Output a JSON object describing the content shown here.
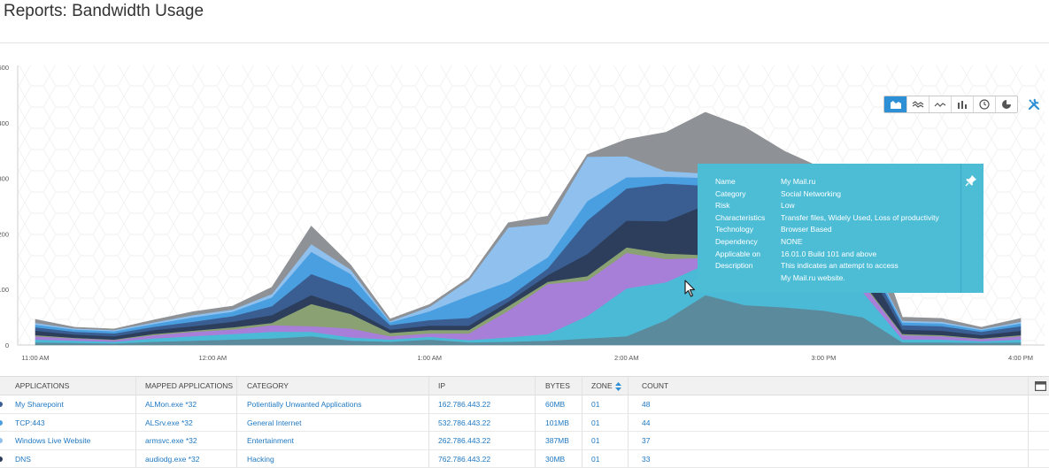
{
  "page": {
    "title": "Reports: Bandwidth Usage"
  },
  "toolbar": {
    "buttons": [
      {
        "icon": "area-chart-icon",
        "active": true
      },
      {
        "icon": "stacked-line-icon",
        "active": false
      },
      {
        "icon": "line-chart-icon",
        "active": false
      },
      {
        "icon": "bar-chart-icon",
        "active": false
      },
      {
        "icon": "clock-icon",
        "active": false
      },
      {
        "icon": "pie-chart-icon",
        "active": false
      }
    ],
    "tools_icon": "wrench-screwdriver-icon",
    "active_color": "#2d8fd5"
  },
  "chart_data": {
    "type": "area",
    "stacked": true,
    "y_tick_labels": [
      "500",
      "400",
      "300",
      "200",
      "100",
      "0"
    ],
    "ylim": [
      0,
      500
    ],
    "x_tick_labels": [
      "11:00 AM",
      "12:00 AM",
      "1:00 AM",
      "2:00 AM",
      "3:00 PM",
      "4:00 PM"
    ],
    "x": [
      0,
      1,
      2,
      3,
      4,
      5,
      6,
      7,
      8,
      9,
      10,
      11,
      12,
      13,
      14,
      15,
      16,
      17,
      18,
      19,
      20,
      21,
      22,
      23,
      24,
      25
    ],
    "x_tick_positions": [
      0,
      4.5,
      10,
      15,
      20,
      25
    ],
    "grid": false,
    "series": [
      {
        "color": "#5b8a9c",
        "values": [
          5,
          4,
          3,
          6,
          8,
          10,
          12,
          16,
          8,
          6,
          10,
          5,
          6,
          8,
          12,
          16,
          45,
          90,
          72,
          68,
          62,
          50,
          5,
          5,
          4,
          5
        ]
      },
      {
        "color": "#4bbad6",
        "values": [
          5,
          4,
          3,
          6,
          8,
          10,
          12,
          8,
          6,
          4,
          5,
          4,
          8,
          12,
          40,
          86,
          68,
          55,
          58,
          56,
          55,
          45,
          5,
          5,
          3,
          5
        ]
      },
      {
        "color": "#a77fd9",
        "values": [
          6,
          4,
          3,
          6,
          8,
          8,
          12,
          10,
          16,
          6,
          6,
          12,
          48,
          90,
          64,
          64,
          42,
          12,
          10,
          8,
          10,
          15,
          8,
          6,
          4,
          6
        ]
      },
      {
        "color": "#8aa173",
        "values": [
          2,
          1,
          1,
          2,
          2,
          4,
          4,
          40,
          26,
          6,
          6,
          6,
          8,
          4,
          8,
          10,
          10,
          5,
          6,
          5,
          4,
          3,
          2,
          2,
          1,
          2
        ]
      },
      {
        "color": "#2c3e5c",
        "values": [
          8,
          6,
          6,
          7,
          8,
          10,
          14,
          16,
          10,
          6,
          8,
          8,
          8,
          12,
          40,
          48,
          58,
          90,
          80,
          60,
          50,
          40,
          8,
          8,
          6,
          8
        ]
      },
      {
        "color": "#3a5e91",
        "values": [
          6,
          5,
          5,
          6,
          8,
          10,
          16,
          38,
          36,
          8,
          10,
          14,
          8,
          12,
          60,
          58,
          68,
          35,
          38,
          30,
          25,
          16,
          8,
          8,
          6,
          8
        ]
      },
      {
        "color": "#4a9fe0",
        "values": [
          5,
          4,
          4,
          5,
          8,
          8,
          16,
          40,
          26,
          5,
          16,
          40,
          28,
          20,
          35,
          20,
          12,
          14,
          12,
          10,
          10,
          8,
          5,
          5,
          3,
          5
        ]
      },
      {
        "color": "#8fc0ee",
        "values": [
          3,
          2,
          2,
          3,
          4,
          4,
          6,
          14,
          8,
          2,
          8,
          28,
          98,
          60,
          80,
          38,
          10,
          8,
          6,
          6,
          5,
          4,
          3,
          3,
          2,
          3
        ]
      },
      {
        "color": "#8e9195",
        "values": [
          6,
          2,
          2,
          4,
          6,
          6,
          12,
          32,
          8,
          4,
          4,
          4,
          8,
          14,
          4,
          30,
          70,
          110,
          110,
          106,
          96,
          70,
          6,
          6,
          3,
          6
        ]
      }
    ]
  },
  "tooltip": {
    "rows": [
      {
        "label": "Name",
        "value": "My Mail.ru"
      },
      {
        "label": "Category",
        "value": "Social Networking"
      },
      {
        "label": "Risk",
        "value": "Low"
      },
      {
        "label": "Characteristics",
        "value": "Transfer files, Widely Used, Loss of productivity"
      },
      {
        "label": "Technology",
        "value": "Browser Based"
      },
      {
        "label": "Dependency",
        "value": "NONE"
      },
      {
        "label": "Applicable on",
        "value": "16.01.0 Build 101 and above"
      },
      {
        "label": "Description",
        "value": "This indicates an attempt to access"
      },
      {
        "label": "",
        "value": "My Mail.ru website."
      }
    ],
    "pin_icon": "pin-icon",
    "background": "#4dbdd6"
  },
  "table": {
    "columns": [
      "APPLICATIONS",
      "MAPPED APPLICATIONS",
      "CATEGORY",
      "IP",
      "BYTES",
      "ZONE",
      "COUNT"
    ],
    "sort_icon": "sort-icon",
    "columns_toggle_icon": "column-toggle-icon",
    "rows": [
      {
        "dot_color": "#3a5e91",
        "cells": [
          "My Sharepoint",
          "ALMon.exe *32",
          "Potientially Unwanted Applications",
          "162.786.443.22",
          "60MB",
          "01",
          "48"
        ]
      },
      {
        "dot_color": "#4a9fe0",
        "cells": [
          "TCP:443",
          "ALSrv.exe *32",
          "General Internet",
          "532.786.443.22",
          "101MB",
          "01",
          "44"
        ]
      },
      {
        "dot_color": "#8fc0ee",
        "cells": [
          "Windows Live Website",
          "armsvc.exe *32",
          "Entertainment",
          "262.786.443.22",
          "387MB",
          "01",
          "37"
        ]
      },
      {
        "dot_color": "#2c3e5c",
        "cells": [
          "DNS",
          "audiodg.exe *32",
          "Hacking",
          "762.786.443.22",
          "30MB",
          "01",
          "33"
        ]
      }
    ]
  }
}
